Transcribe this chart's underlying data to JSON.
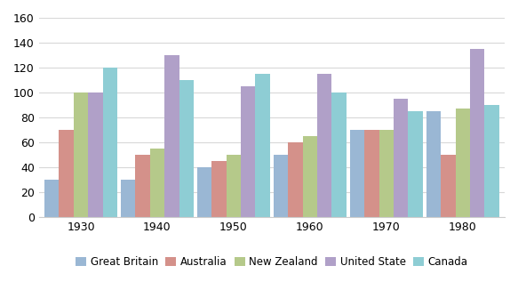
{
  "years": [
    "1930",
    "1940",
    "1950",
    "1960",
    "1970",
    "1980"
  ],
  "series": {
    "Great Britain": [
      30,
      30,
      40,
      50,
      70,
      85
    ],
    "Australia": [
      70,
      50,
      45,
      60,
      70,
      50
    ],
    "New Zealand": [
      100,
      55,
      50,
      65,
      70,
      87
    ],
    "United State": [
      100,
      130,
      105,
      115,
      95,
      135
    ],
    "Canada": [
      120,
      110,
      115,
      100,
      85,
      90
    ]
  },
  "colors": {
    "Great Britain": "#9ab7d4",
    "Australia": "#d4918a",
    "New Zealand": "#b5c98a",
    "United State": "#b0a0c8",
    "Canada": "#8ecdd4"
  },
  "ylim": [
    0,
    160
  ],
  "yticks": [
    0,
    20,
    40,
    60,
    80,
    100,
    120,
    140,
    160
  ],
  "legend_order": [
    "Great Britain",
    "Australia",
    "New Zealand",
    "United State",
    "Canada"
  ],
  "background_color": "#ffffff",
  "grid_color": "#d8d8d8"
}
